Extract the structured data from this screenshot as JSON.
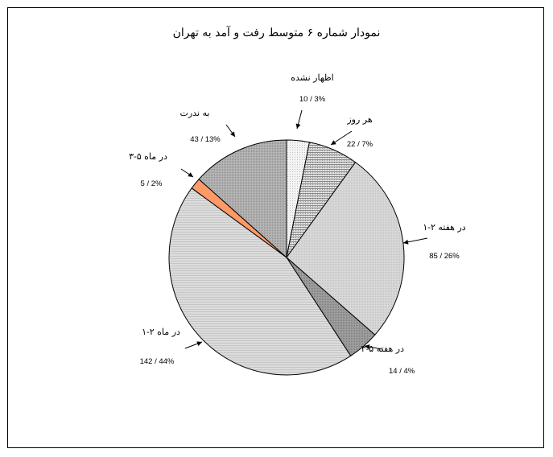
{
  "title": "نمودار شماره ۶ متوسط رفت و آمد به تهران",
  "chart_data": {
    "type": "pie",
    "title": "نمودار شماره ۶ متوسط رفت و آمد به تهران",
    "slices": [
      {
        "label": "اظهار نشده",
        "count": 10,
        "percent": 3,
        "value_label": "10 / 3%",
        "pattern": "dots-light"
      },
      {
        "label": "هر روز",
        "count": 22,
        "percent": 7,
        "value_label": "22 / 7%",
        "pattern": "hatch"
      },
      {
        "label": "در هفته ۲-۱",
        "count": 85,
        "percent": 26,
        "value_label": "85 / 26%",
        "pattern": "light"
      },
      {
        "label": "در هفته ۵-۳",
        "count": 14,
        "percent": 4,
        "value_label": "14 / 4%",
        "pattern": "dark"
      },
      {
        "label": "در ماه ۲-۱",
        "count": 142,
        "percent": 44,
        "value_label": "142 / 44%",
        "pattern": "lines"
      },
      {
        "label": "در ماه ۵-۳",
        "count": 5,
        "percent": 2,
        "value_label": "5 / 2%",
        "pattern": "orange"
      },
      {
        "label": "به ندرت",
        "count": 43,
        "percent": 13,
        "value_label": "43 / 13%",
        "pattern": "medium"
      }
    ],
    "colors": {
      "orange": "#ff9966"
    }
  }
}
